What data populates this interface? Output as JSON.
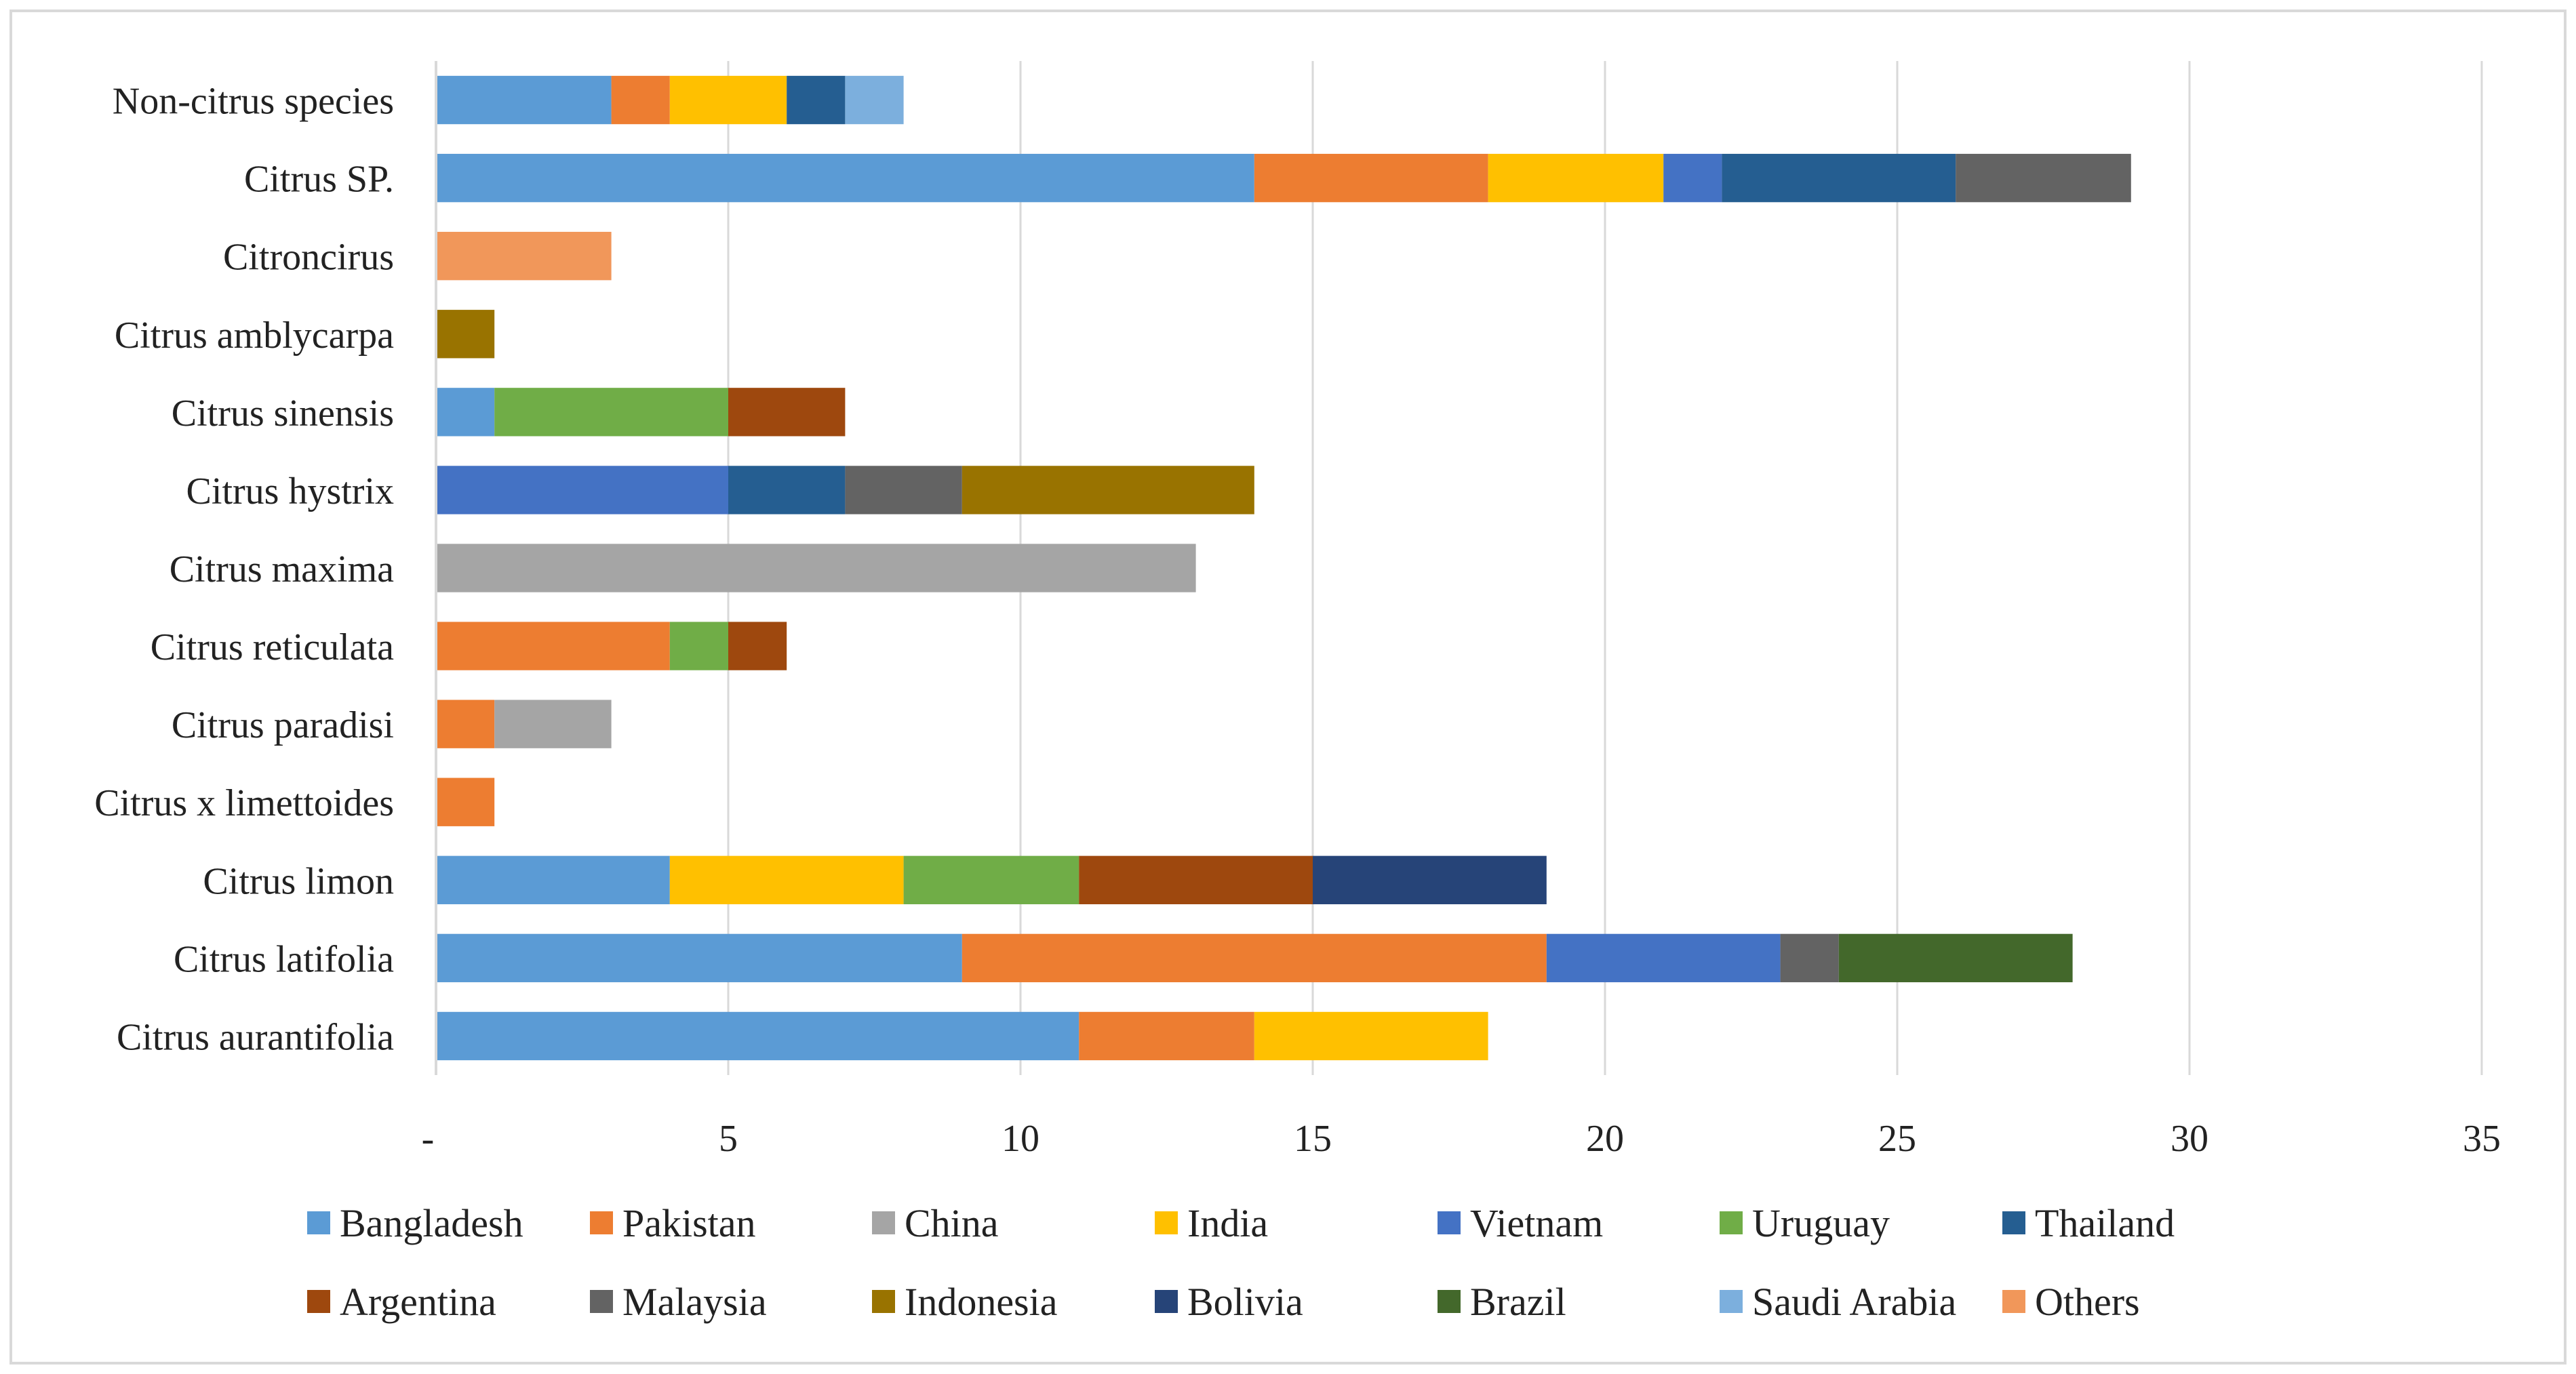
{
  "chart_data": {
    "type": "bar",
    "orientation": "horizontal",
    "stacked": true,
    "title": "",
    "xlabel": "",
    "ylabel": "",
    "xlim": [
      0,
      35
    ],
    "xticks": [
      0,
      5,
      10,
      15,
      20,
      25,
      30,
      35
    ],
    "xtick_labels": [
      "-",
      "5",
      "10",
      "15",
      "20",
      "25",
      "30",
      "35"
    ],
    "grid": true,
    "legend_position": "bottom",
    "categories": [
      "Non-citrus species",
      "Citrus SP.",
      "Citroncirus",
      "Citrus amblycarpa",
      "Citrus sinensis",
      "Citrus hystrix",
      "Citrus maxima",
      "Citrus reticulata",
      "Citrus paradisi",
      "Citrus x limettoides",
      "Citrus limon",
      "Citrus latifolia",
      "Citrus aurantifolia"
    ],
    "series": [
      {
        "name": "Bangladesh",
        "color": "#5b9bd5",
        "values": [
          3,
          14,
          0,
          0,
          1,
          0,
          0,
          0,
          0,
          0,
          4,
          9,
          11
        ]
      },
      {
        "name": "Pakistan",
        "color": "#ed7d31",
        "values": [
          1,
          4,
          0,
          0,
          0,
          0,
          0,
          4,
          1,
          1,
          0,
          10,
          3
        ]
      },
      {
        "name": "China",
        "color": "#a5a5a5",
        "values": [
          0,
          0,
          0,
          0,
          0,
          0,
          13,
          0,
          2,
          0,
          0,
          0,
          0
        ]
      },
      {
        "name": "India",
        "color": "#ffc000",
        "values": [
          2,
          3,
          0,
          0,
          0,
          0,
          0,
          0,
          0,
          0,
          4,
          0,
          4
        ]
      },
      {
        "name": "Vietnam",
        "color": "#4472c4",
        "values": [
          0,
          1,
          0,
          0,
          0,
          5,
          0,
          0,
          0,
          0,
          0,
          4,
          0
        ]
      },
      {
        "name": "Uruguay",
        "color": "#70ad47",
        "values": [
          0,
          0,
          0,
          0,
          4,
          0,
          0,
          1,
          0,
          0,
          3,
          0,
          0
        ]
      },
      {
        "name": "Thailand",
        "color": "#255e91",
        "values": [
          1,
          4,
          0,
          0,
          0,
          2,
          0,
          0,
          0,
          0,
          0,
          0,
          0
        ]
      },
      {
        "name": "Argentina",
        "color": "#9e480e",
        "values": [
          0,
          0,
          0,
          0,
          2,
          0,
          0,
          1,
          0,
          0,
          4,
          0,
          0
        ]
      },
      {
        "name": "Malaysia",
        "color": "#636363",
        "values": [
          0,
          3,
          0,
          0,
          0,
          2,
          0,
          0,
          0,
          0,
          0,
          1,
          0
        ]
      },
      {
        "name": "Indonesia",
        "color": "#997300",
        "values": [
          0,
          0,
          0,
          1,
          0,
          5,
          0,
          0,
          0,
          0,
          0,
          0,
          0
        ]
      },
      {
        "name": "Bolivia",
        "color": "#264478",
        "values": [
          0,
          0,
          0,
          0,
          0,
          0,
          0,
          0,
          0,
          0,
          4,
          0,
          0
        ]
      },
      {
        "name": "Brazil",
        "color": "#43682b",
        "values": [
          0,
          0,
          0,
          0,
          0,
          0,
          0,
          0,
          0,
          0,
          0,
          4,
          0
        ]
      },
      {
        "name": "Saudi Arabia",
        "color": "#7cafdd",
        "values": [
          1,
          0,
          0,
          0,
          0,
          0,
          0,
          0,
          0,
          0,
          0,
          0,
          0
        ]
      },
      {
        "name": "Others",
        "color": "#f1975a",
        "values": [
          0,
          0,
          3,
          0,
          0,
          0,
          0,
          0,
          0,
          0,
          0,
          0,
          0
        ]
      }
    ]
  },
  "colors": {
    "gridline": "#d9d9d9",
    "frame": "#d9d9d9",
    "text": "#222222"
  }
}
